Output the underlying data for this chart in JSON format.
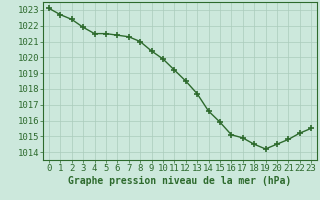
{
  "x": [
    0,
    1,
    2,
    3,
    4,
    5,
    6,
    7,
    8,
    9,
    10,
    11,
    12,
    13,
    14,
    15,
    16,
    17,
    18,
    19,
    20,
    21,
    22,
    23
  ],
  "y": [
    1023.1,
    1022.7,
    1022.4,
    1021.9,
    1021.5,
    1021.5,
    1021.4,
    1021.3,
    1021.0,
    1020.4,
    1019.9,
    1019.2,
    1018.5,
    1017.7,
    1016.6,
    1015.9,
    1015.1,
    1014.9,
    1014.5,
    1014.2,
    1014.5,
    1014.8,
    1015.2,
    1015.5
  ],
  "ylim": [
    1013.5,
    1023.5
  ],
  "yticks": [
    1014,
    1015,
    1016,
    1017,
    1018,
    1019,
    1020,
    1021,
    1022,
    1023
  ],
  "xlim": [
    -0.5,
    23.5
  ],
  "xticks": [
    0,
    1,
    2,
    3,
    4,
    5,
    6,
    7,
    8,
    9,
    10,
    11,
    12,
    13,
    14,
    15,
    16,
    17,
    18,
    19,
    20,
    21,
    22,
    23
  ],
  "xlabel": "Graphe pression niveau de la mer (hPa)",
  "line_color": "#2d6a2d",
  "marker": "+",
  "bg_color": "#cce8dc",
  "grid_color": "#aaccbb",
  "axis_color": "#2d6a2d",
  "label_color": "#2d6a2d",
  "xlabel_fontsize": 7,
  "tick_fontsize": 6.5,
  "linewidth": 1.0,
  "markersize": 4,
  "markeredgewidth": 1.2
}
